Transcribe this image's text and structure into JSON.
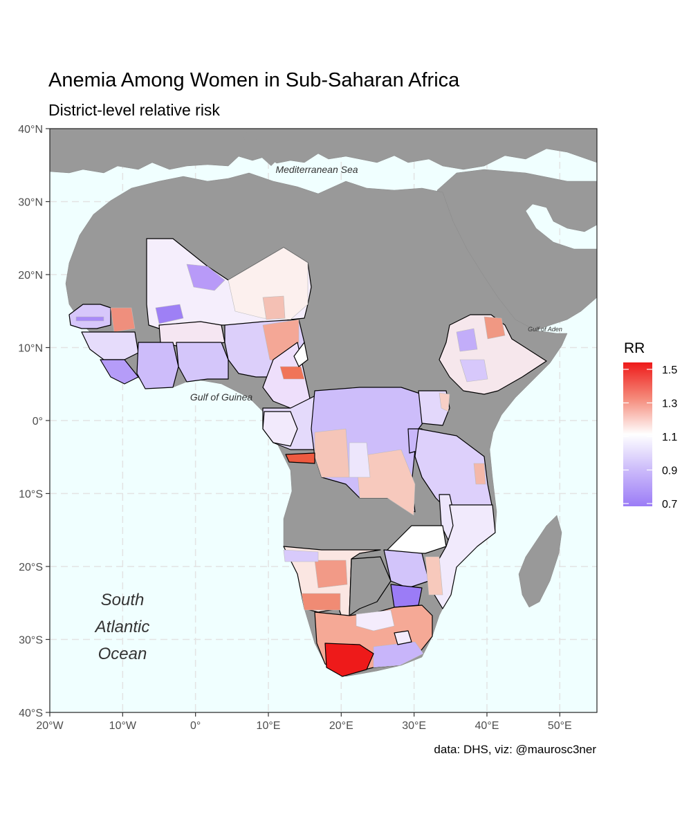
{
  "title": "Anemia Among Women in Sub-Saharan Africa",
  "subtitle": "District-level relative risk",
  "caption": "data: DHS, viz: @maurosc3ner",
  "colors": {
    "ocean": "#f0ffff",
    "land": "#999999",
    "low": "#9b7cf6",
    "mid": "#ffffff",
    "high": "#ee1a1a",
    "grid": "#e3e3e3"
  },
  "map": {
    "x_ticks": [
      "20°W",
      "10°W",
      "0°",
      "10°E",
      "20°E",
      "30°E",
      "40°E",
      "50°E"
    ],
    "y_ticks": [
      "40°N",
      "30°N",
      "20°N",
      "10°N",
      "0°",
      "10°S",
      "20°S",
      "30°S",
      "40°S"
    ],
    "lon_range": [
      -20,
      55
    ],
    "lat_range": [
      -40,
      40
    ],
    "sea_labels": {
      "mediterranean": "Mediterranean Sea",
      "guinea": "Gulf of Guinea",
      "aden": "Gulf of Aden",
      "atlantic": [
        "South",
        "Atlantic",
        "Ocean"
      ]
    }
  },
  "legend": {
    "title": "RR",
    "breaks": [
      "1.5",
      "1.3",
      "1.1",
      "0.9",
      "0.7"
    ]
  }
}
